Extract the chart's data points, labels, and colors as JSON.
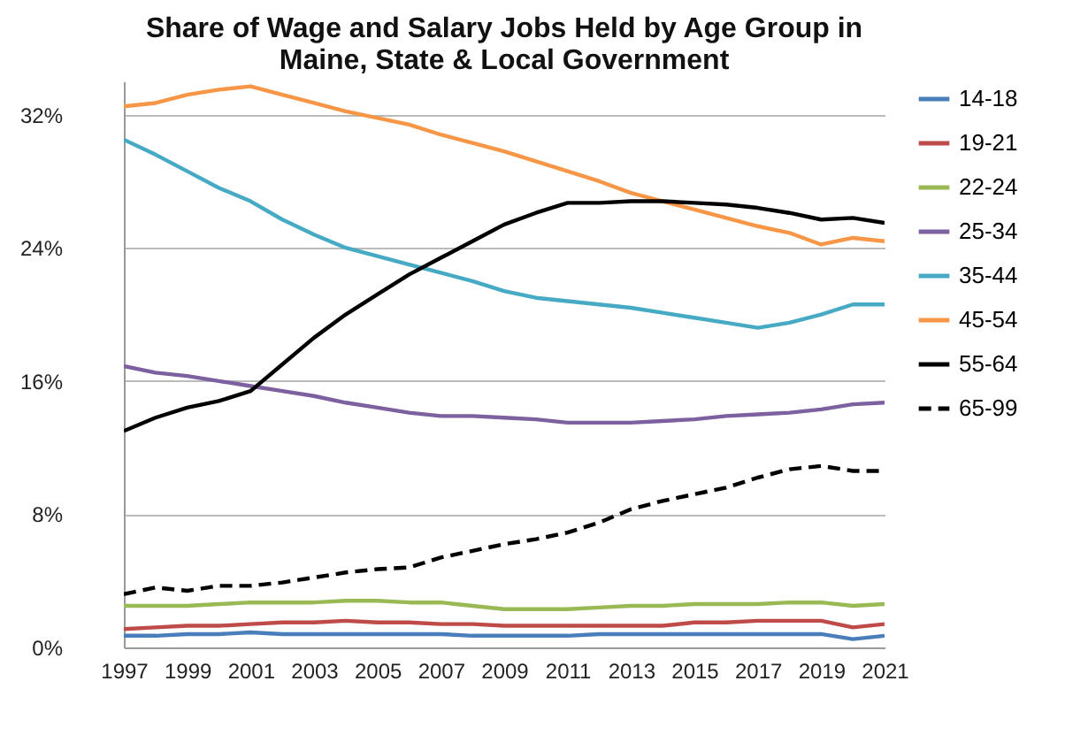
{
  "chart_data": {
    "type": "line",
    "title": "Share of Wage and Salary Jobs Held by Age Group in Maine, State & Local Government",
    "x": [
      1997,
      1998,
      1999,
      2000,
      2001,
      2002,
      2003,
      2004,
      2005,
      2006,
      2007,
      2008,
      2009,
      2010,
      2011,
      2012,
      2013,
      2014,
      2015,
      2016,
      2017,
      2018,
      2019,
      2020,
      2021
    ],
    "xlim": [
      1997,
      2021
    ],
    "xticks": [
      1997,
      1999,
      2001,
      2003,
      2005,
      2007,
      2009,
      2011,
      2013,
      2015,
      2017,
      2019,
      2021
    ],
    "ylim": [
      0,
      34
    ],
    "yticks": [
      {
        "value": 0,
        "label": "0%"
      },
      {
        "value": 8,
        "label": "8%"
      },
      {
        "value": 16,
        "label": "16%"
      },
      {
        "value": 24,
        "label": "24%"
      },
      {
        "value": 32,
        "label": "32%"
      }
    ],
    "grid": "y",
    "legend": "right",
    "series": [
      {
        "name": "14-18",
        "color": "#4a7ebb",
        "line_style": "solid",
        "values": [
          0.7,
          0.7,
          0.8,
          0.8,
          0.9,
          0.8,
          0.8,
          0.8,
          0.8,
          0.8,
          0.8,
          0.7,
          0.7,
          0.7,
          0.7,
          0.8,
          0.8,
          0.8,
          0.8,
          0.8,
          0.8,
          0.8,
          0.8,
          0.5,
          0.7
        ]
      },
      {
        "name": "19-21",
        "color": "#be4b48",
        "line_style": "solid",
        "values": [
          1.1,
          1.2,
          1.3,
          1.3,
          1.4,
          1.5,
          1.5,
          1.6,
          1.5,
          1.5,
          1.4,
          1.4,
          1.3,
          1.3,
          1.3,
          1.3,
          1.3,
          1.3,
          1.5,
          1.5,
          1.6,
          1.6,
          1.6,
          1.2,
          1.4
        ]
      },
      {
        "name": "22-24",
        "color": "#98b954",
        "line_style": "solid",
        "values": [
          2.5,
          2.5,
          2.5,
          2.6,
          2.7,
          2.7,
          2.7,
          2.8,
          2.8,
          2.7,
          2.7,
          2.5,
          2.3,
          2.3,
          2.3,
          2.4,
          2.5,
          2.5,
          2.6,
          2.6,
          2.6,
          2.7,
          2.7,
          2.5,
          2.6
        ]
      },
      {
        "name": "25-34",
        "color": "#7d60a0",
        "line_style": "solid",
        "values": [
          16.9,
          16.5,
          16.3,
          16.0,
          15.7,
          15.4,
          15.1,
          14.7,
          14.4,
          14.1,
          13.9,
          13.9,
          13.8,
          13.7,
          13.5,
          13.5,
          13.5,
          13.6,
          13.7,
          13.9,
          14.0,
          14.1,
          14.3,
          14.6,
          14.7
        ]
      },
      {
        "name": "35-44",
        "color": "#46aac5",
        "line_style": "solid",
        "values": [
          30.5,
          29.6,
          28.6,
          27.6,
          26.8,
          25.7,
          24.8,
          24.0,
          23.5,
          23.0,
          22.5,
          22.0,
          21.4,
          21.0,
          20.8,
          20.6,
          20.4,
          20.1,
          19.8,
          19.5,
          19.2,
          19.5,
          20.0,
          20.6,
          20.6
        ]
      },
      {
        "name": "45-54",
        "color": "#f79646",
        "line_style": "solid",
        "values": [
          32.5,
          32.7,
          33.2,
          33.5,
          33.7,
          33.2,
          32.7,
          32.2,
          31.8,
          31.4,
          30.8,
          30.3,
          29.8,
          29.2,
          28.6,
          28.0,
          27.3,
          26.8,
          26.3,
          25.8,
          25.3,
          24.9,
          24.2,
          24.6,
          24.4
        ]
      },
      {
        "name": "55-64",
        "color": "#000000",
        "line_style": "solid",
        "values": [
          13.0,
          13.8,
          14.4,
          14.8,
          15.4,
          17.0,
          18.6,
          20.0,
          21.2,
          22.4,
          23.4,
          24.4,
          25.4,
          26.1,
          26.7,
          26.7,
          26.8,
          26.8,
          26.7,
          26.6,
          26.4,
          26.1,
          25.7,
          25.8,
          25.5
        ]
      },
      {
        "name": "65-99",
        "color": "#000000",
        "line_style": "dashed",
        "values": [
          3.2,
          3.6,
          3.4,
          3.7,
          3.7,
          3.9,
          4.2,
          4.5,
          4.7,
          4.8,
          5.4,
          5.8,
          6.2,
          6.5,
          6.9,
          7.5,
          8.3,
          8.8,
          9.2,
          9.6,
          10.2,
          10.7,
          10.9,
          10.6,
          10.6
        ]
      }
    ]
  }
}
